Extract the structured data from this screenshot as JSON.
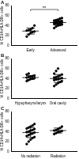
{
  "chart_data": [
    {
      "type": "scatter",
      "title": "A",
      "y_label": "% CD14+HLA-DR+ cells",
      "categories": [
        "Early",
        "Advanced"
      ],
      "values": [
        [
          18,
          22,
          25,
          27,
          28,
          30,
          31,
          32,
          35,
          40
        ],
        [
          35,
          38,
          40,
          41,
          42,
          43,
          44,
          44,
          45,
          46,
          46,
          47,
          48,
          48,
          49,
          50,
          51,
          52,
          54,
          55
        ]
      ],
      "means": [
        29,
        46
      ],
      "errors": [
        6,
        5
      ],
      "annotation": "**",
      "color": "#000000",
      "marker": "circle",
      "ylim": [
        0,
        80
      ],
      "yticks": [
        0,
        20,
        40,
        60,
        80
      ],
      "grid": false
    },
    {
      "type": "scatter",
      "title": "B",
      "y_label": "% CD14+HLA-DR+ cells",
      "categories": [
        "Hypopharynx/larynx",
        "Oral cavity"
      ],
      "values": [
        [
          35,
          37,
          39,
          40,
          41,
          42,
          43,
          44,
          45,
          46,
          48,
          50
        ],
        [
          25,
          28,
          31,
          33,
          35,
          37,
          38,
          39,
          40,
          41,
          42,
          43,
          44,
          46,
          48,
          50,
          55,
          60
        ]
      ],
      "means": [
        42,
        40
      ],
      "errors": [
        4,
        8
      ],
      "color": "#000000",
      "marker": "circle",
      "ylim": [
        0,
        80
      ],
      "yticks": [
        0,
        20,
        40,
        60,
        80
      ],
      "grid": false
    },
    {
      "type": "scatter",
      "title": "C",
      "y_label": "% CD14+HLA-DR+ cells",
      "categories": [
        "No radiation",
        "Radiation"
      ],
      "values": [
        [
          15,
          20,
          24,
          27,
          29,
          31,
          33,
          35,
          36,
          38,
          39,
          40,
          42,
          43,
          45,
          46,
          48,
          50,
          52,
          55
        ],
        [
          35,
          37,
          39,
          40,
          41,
          42,
          43,
          45,
          47,
          50
        ]
      ],
      "means": [
        38,
        42
      ],
      "errors": [
        10,
        5
      ],
      "color": "#000000",
      "marker": "circle",
      "ylim": [
        0,
        80
      ],
      "yticks": [
        0,
        20,
        40,
        60,
        80
      ],
      "grid": false
    }
  ]
}
